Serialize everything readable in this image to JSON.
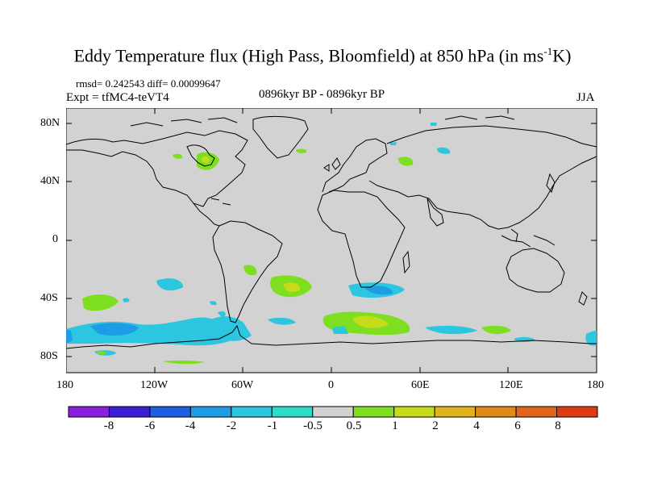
{
  "title": "Eddy Temperature flux (High Pass, Bloomfield) at 850 hPa (in ms",
  "title_sup": "-1",
  "title_end": "K)",
  "stats": "rmsd= 0.242543 diff= 0.00099647",
  "experiment": "Expt = tfMC4-teVT4",
  "period": "0896kyr BP - 0896kyr BP",
  "season": "JJA",
  "lat_labels": [
    "80N",
    "40N",
    "0",
    "40S",
    "80S"
  ],
  "lon_labels": [
    "180",
    "120W",
    "60W",
    "0",
    "60E",
    "120E",
    "180"
  ],
  "colorbar": {
    "labels": [
      "-8",
      "-6",
      "-4",
      "-2",
      "-1",
      "-0.5",
      "0.5",
      "1",
      "2",
      "4",
      "6",
      "8"
    ],
    "colors": [
      "#8a1fe0",
      "#3a1fd6",
      "#1f5ee0",
      "#1f9ce6",
      "#2cc6e0",
      "#2edcc6",
      "#d2d2d2",
      "#7ede20",
      "#c6dc1a",
      "#e0b41a",
      "#e08a1a",
      "#e0641a",
      "#e03a14"
    ]
  },
  "colors": {
    "background": "#d2d2d2",
    "coastline": "#000000"
  }
}
